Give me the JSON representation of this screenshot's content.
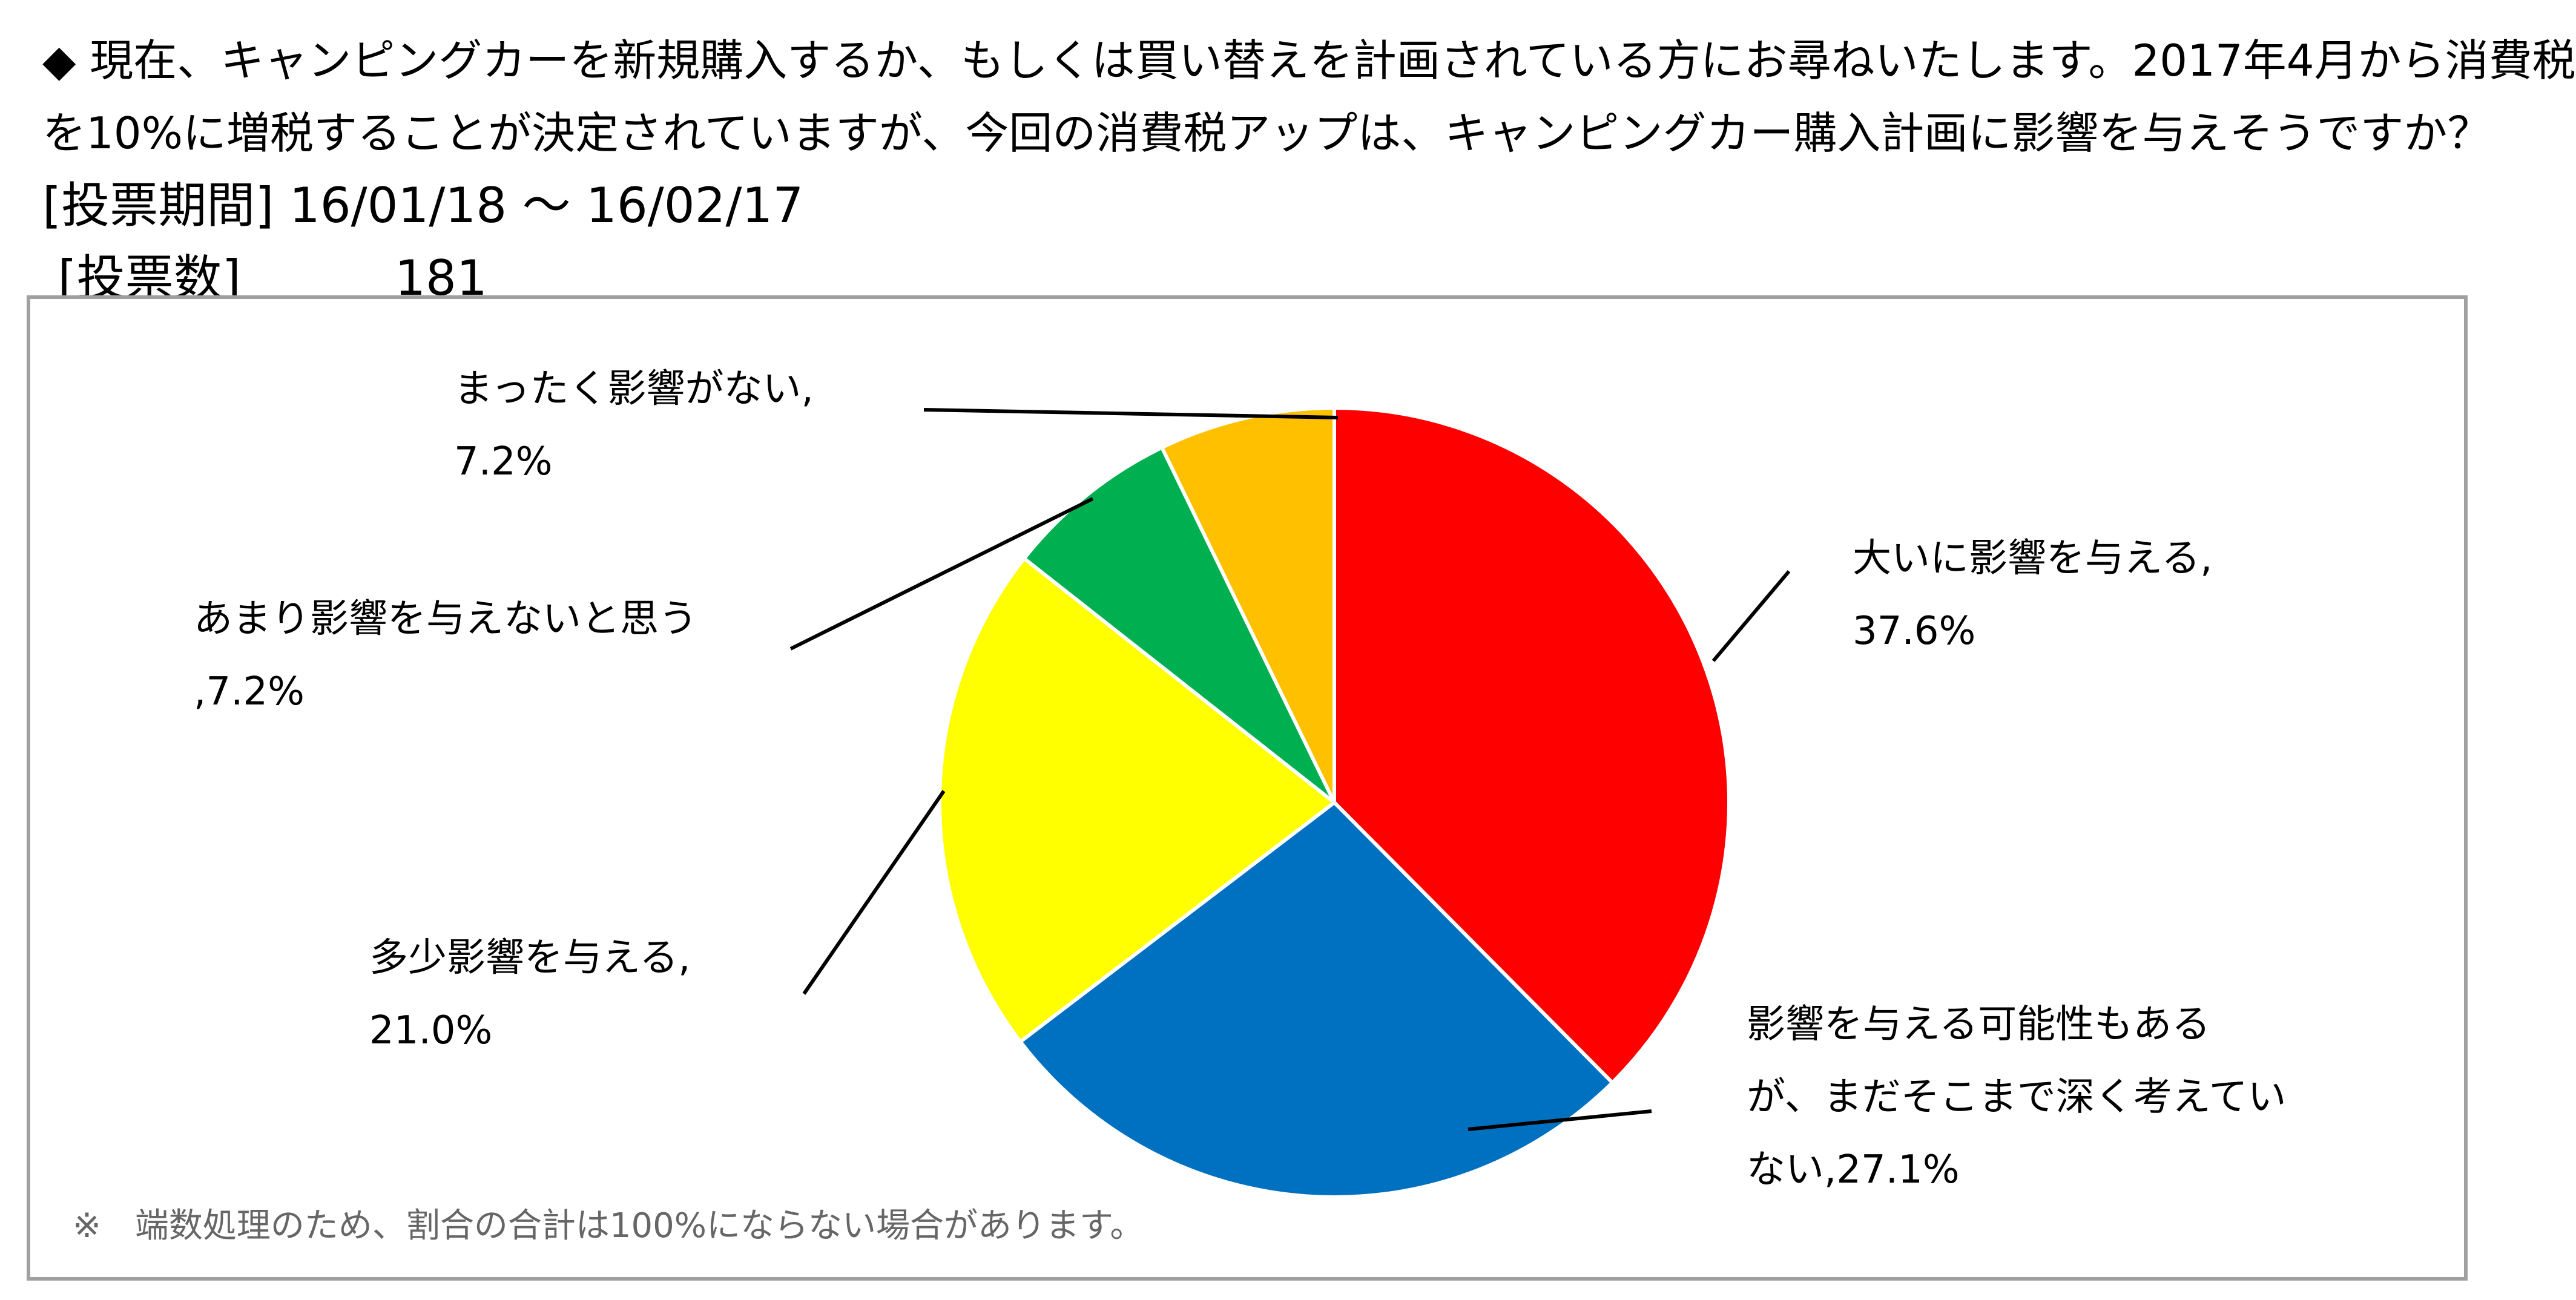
{
  "header": {
    "question_line1": "◆ 現在、キャンピングカーを新規購入するか、もしくは買い替えを計画されている方にお尋ねいたします。2017年4月から消費税",
    "question_line2": "を10%に増税することが決定されていますが、今回の消費税アップは、キャンピングカー購入計画に影響を与えそうですか？",
    "period_label": "[投票期間]",
    "period_value": "16/01/18 ～ 16/02/17",
    "votes_label": "[投票数]",
    "votes_value": "181"
  },
  "chart_data": {
    "type": "pie",
    "start_angle_deg": 0,
    "direction": "clockwise",
    "slices": [
      {
        "label_lines": [
          "大いに影響を与える,",
          "37.6%"
        ],
        "value": 37.6,
        "color": "#ff0000"
      },
      {
        "label_lines": [
          "影響を与える可能性もある",
          "が、まだそこまで深く考えてい",
          "ない,27.1%"
        ],
        "value": 27.1,
        "color": "#0070c0"
      },
      {
        "label_lines": [
          "多少影響を与える,",
          "21.0%"
        ],
        "value": 21.0,
        "color": "#ffff00"
      },
      {
        "label_lines": [
          "あまり影響を与えないと思う",
          ",7.2%"
        ],
        "value": 7.2,
        "color": "#00b050"
      },
      {
        "label_lines": [
          "まったく影響がない,",
          "7.2%"
        ],
        "value": 7.2,
        "color": "#ffc000"
      }
    ],
    "note": "※　端数処理のため、割合の合計は100%にならない場合があります。"
  }
}
